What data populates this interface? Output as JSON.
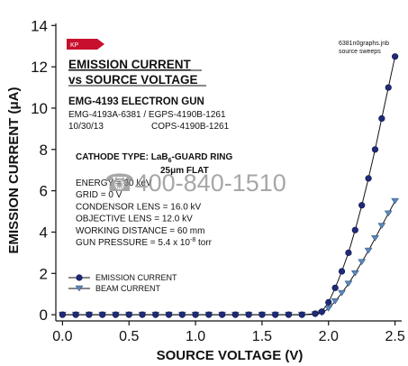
{
  "chart_data": {
    "type": "line",
    "title": "EMISSION CURRENT",
    "subtitle": "vs SOURCE VOLTAGE",
    "xlabel": "SOURCE VOLTAGE (V)",
    "ylabel": "EMISSION CURRENT (μA)",
    "xlim": [
      -0.05,
      2.55
    ],
    "ylim": [
      -0.3,
      14.1
    ],
    "xticks": [
      "0.0",
      "0.5",
      "1.0",
      "1.5",
      "2.0",
      "2.5"
    ],
    "xtick_values": [
      0.0,
      0.5,
      1.0,
      1.5,
      2.0,
      2.5
    ],
    "yticks": [
      "0",
      "2",
      "4",
      "6",
      "8",
      "10",
      "12",
      "14"
    ],
    "ytick_values": [
      0,
      2,
      4,
      6,
      8,
      10,
      12,
      14
    ],
    "grid": false,
    "legend_position": "bottom-left",
    "series": [
      {
        "name": "EMISSION CURRENT",
        "marker": "circle",
        "color": "#1f2a7a",
        "x": [
          0.0,
          0.1,
          0.2,
          0.3,
          0.4,
          0.5,
          0.6,
          0.7,
          0.8,
          0.9,
          1.0,
          1.1,
          1.2,
          1.3,
          1.4,
          1.5,
          1.6,
          1.7,
          1.8,
          1.9,
          1.95,
          2.0,
          2.05,
          2.1,
          2.15,
          2.2,
          2.25,
          2.3,
          2.35,
          2.4,
          2.45,
          2.5
        ],
        "y": [
          0,
          0,
          0,
          0,
          0,
          0,
          0,
          0,
          0,
          0,
          0,
          0,
          0,
          0,
          0,
          0,
          0,
          0,
          0,
          0.05,
          0.15,
          0.6,
          1.3,
          2.1,
          3.0,
          4.1,
          5.3,
          6.6,
          8.0,
          9.5,
          11.0,
          12.5
        ]
      },
      {
        "name": "BEAM CURRENT",
        "marker": "triangle-down",
        "color": "#5b86b8",
        "x": [
          0.0,
          0.1,
          0.2,
          0.3,
          0.4,
          0.5,
          0.6,
          0.7,
          0.8,
          0.9,
          1.0,
          1.1,
          1.2,
          1.3,
          1.4,
          1.5,
          1.6,
          1.7,
          1.8,
          1.9,
          1.95,
          2.0,
          2.05,
          2.1,
          2.15,
          2.2,
          2.25,
          2.3,
          2.35,
          2.4,
          2.45,
          2.5
        ],
        "y": [
          0,
          0,
          0,
          0,
          0,
          0,
          0,
          0,
          0,
          0,
          0,
          0,
          0,
          0,
          0,
          0,
          0,
          0,
          0,
          0.02,
          0.08,
          0.3,
          0.65,
          1.05,
          1.5,
          2.0,
          2.55,
          3.1,
          3.7,
          4.3,
          4.9,
          5.5
        ]
      }
    ],
    "annotations": {
      "badge": "KP",
      "top_right_line1": "6381n0graphs.jnb",
      "top_right_line2": "source sweeps",
      "gun_title": "EMG-4193 ELECTRON GUN",
      "part_numbers": "EMG-4193A-6381 / EGPS-4190B-1261",
      "date": "10/30/13",
      "cops": "COPS-4190B-1261",
      "cathode_line1": "CATHODE TYPE:  LaB",
      "cathode_sub": "6",
      "cathode_line1_end": "-GUARD RING",
      "cathode_line2": "25μm FLAT",
      "params": [
        "ENERGY = 30 keV",
        "GRID = 0 V",
        "CONDENSOR LENS = 16.0 kV",
        "OBJECTIVE LENS = 12.0 kV",
        "WORKING DISTANCE = 60 mm",
        "GUN PRESSURE = 5.4 x 10"
      ],
      "pressure_exp": "-8",
      "pressure_unit": " torr",
      "watermark": "☎400-840-1510"
    },
    "colors": {
      "badge": "#c8102e",
      "axis": "#111111"
    }
  }
}
